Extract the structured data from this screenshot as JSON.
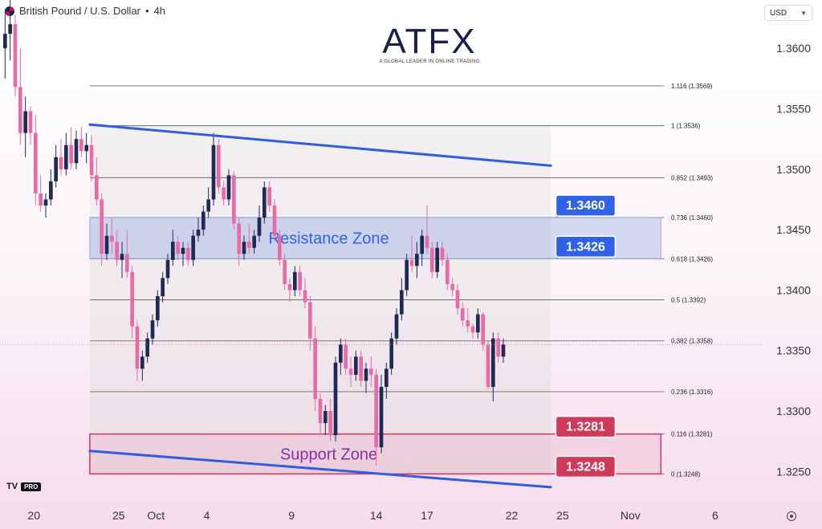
{
  "header": {
    "symbol": "British Pound / U.S. Dollar",
    "interval": "4h",
    "separator": "•"
  },
  "currency": {
    "label": "USD"
  },
  "logo": {
    "text": "ATFX",
    "tagline": "A GLOBAL LEADER IN ONLINE TRADING"
  },
  "branding": {
    "tv": "TV",
    "pro": "PRO"
  },
  "colors": {
    "up": "#1e2a55",
    "down": "#e86aa6",
    "trend": "#2f5fe0",
    "support": "#d03a5a",
    "resistance": "#2f62e6"
  },
  "chart_data": {
    "type": "candlestick",
    "ylim": [
      1.3225,
      1.364
    ],
    "xlim": [
      18.0,
      39.5
    ],
    "y_ticks": [
      "1.3250",
      "1.3300",
      "1.3350",
      "1.3400",
      "1.3450",
      "1.3500",
      "1.3550",
      "1.3600"
    ],
    "x_ticks": [
      {
        "label": "20",
        "x": 20
      },
      {
        "label": "25",
        "x": 25
      },
      {
        "label": "Oct",
        "x": 27.2
      },
      {
        "label": "4",
        "x": 30.2
      },
      {
        "label": "9",
        "x": 35.2
      },
      {
        "label": "14",
        "x": 40.2
      },
      {
        "label": "17",
        "x": 43.2
      },
      {
        "label": "22",
        "x": 48.2
      },
      {
        "label": "25",
        "x": 51.2
      },
      {
        "label": "Nov",
        "x": 55.2
      },
      {
        "label": "6",
        "x": 60.2
      }
    ],
    "xlim_full": [
      18.0,
      63.0
    ],
    "fib_levels": [
      {
        "ratio": "1.116",
        "label": "1.116 (1.3569)",
        "value": 1.3569
      },
      {
        "ratio": "1",
        "label": "1 (1.3536)",
        "value": 1.3536
      },
      {
        "ratio": "0.852",
        "label": "0.852 (1.3493)",
        "value": 1.3493
      },
      {
        "ratio": "0.736",
        "label": "0.736 (1.3460)",
        "value": 1.346
      },
      {
        "ratio": "0.618",
        "label": "0.618 (1.3426)",
        "value": 1.3426
      },
      {
        "ratio": "0.5",
        "label": "0.5 (1.3392)",
        "value": 1.3392
      },
      {
        "ratio": "0.382",
        "label": "0.382 (1.3358)",
        "value": 1.3358
      },
      {
        "ratio": "0.236",
        "label": "0.236 (1.3316)",
        "value": 1.3316
      },
      {
        "ratio": "0.116",
        "label": "0.116 (1.3281)",
        "value": 1.3281
      },
      {
        "ratio": "0",
        "label": "0 (1.3248)",
        "value": 1.3248
      }
    ],
    "zones": [
      {
        "name": "Resistance Zone",
        "low": 1.3426,
        "high": 1.346,
        "kind": "resistance"
      },
      {
        "name": "Support Zone",
        "low": 1.3248,
        "high": 1.3281,
        "kind": "support"
      }
    ],
    "price_labels": [
      {
        "text": "1.3460",
        "value": 1.346,
        "kind": "resistance"
      },
      {
        "text": "1.3426",
        "value": 1.3426,
        "kind": "resistance"
      },
      {
        "text": "1.3281",
        "value": 1.3281,
        "kind": "support"
      },
      {
        "text": "1.3248",
        "value": 1.3248,
        "kind": "support"
      }
    ],
    "trendlines": [
      {
        "x1": 23.3,
        "y1": 1.3537,
        "x2": 50.5,
        "y2": 1.3503
      },
      {
        "x1": 23.3,
        "y1": 1.3267,
        "x2": 50.5,
        "y2": 1.3237
      }
    ],
    "current_price": 1.3355,
    "candles": [
      [
        18.3,
        1.36,
        1.363,
        1.3575,
        1.3612
      ],
      [
        18.6,
        1.3612,
        1.364,
        1.359,
        1.362
      ],
      [
        18.9,
        1.362,
        1.3628,
        1.356,
        1.3568
      ],
      [
        19.2,
        1.3568,
        1.36,
        1.352,
        1.353
      ],
      [
        19.5,
        1.353,
        1.356,
        1.351,
        1.3548
      ],
      [
        19.8,
        1.3548,
        1.3552,
        1.352,
        1.353
      ],
      [
        20.1,
        1.353,
        1.3545,
        1.347,
        1.348
      ],
      [
        20.4,
        1.348,
        1.3495,
        1.3465,
        1.347
      ],
      [
        20.7,
        1.347,
        1.348,
        1.346,
        1.3475
      ],
      [
        21.0,
        1.3475,
        1.35,
        1.347,
        1.349
      ],
      [
        21.3,
        1.349,
        1.352,
        1.3485,
        1.351
      ],
      [
        21.6,
        1.351,
        1.3525,
        1.3495,
        1.35
      ],
      [
        21.9,
        1.35,
        1.353,
        1.3495,
        1.352
      ],
      [
        22.2,
        1.352,
        1.3535,
        1.35,
        1.3505
      ],
      [
        22.5,
        1.3505,
        1.3532,
        1.35,
        1.3525
      ],
      [
        22.8,
        1.3525,
        1.3535,
        1.351,
        1.3515
      ],
      [
        23.1,
        1.3515,
        1.353,
        1.3505,
        1.352
      ],
      [
        23.4,
        1.352,
        1.3528,
        1.349,
        1.3495
      ],
      [
        23.7,
        1.3495,
        1.351,
        1.347,
        1.3475
      ],
      [
        24.0,
        1.3475,
        1.348,
        1.342,
        1.343
      ],
      [
        24.3,
        1.343,
        1.3455,
        1.3425,
        1.3445
      ],
      [
        24.6,
        1.3445,
        1.346,
        1.343,
        1.344
      ],
      [
        24.9,
        1.344,
        1.345,
        1.342,
        1.3425
      ],
      [
        25.2,
        1.3425,
        1.344,
        1.341,
        1.343
      ],
      [
        25.5,
        1.343,
        1.345,
        1.341,
        1.3415
      ],
      [
        25.8,
        1.3415,
        1.342,
        1.336,
        1.337
      ],
      [
        26.1,
        1.337,
        1.3375,
        1.3325,
        1.3335
      ],
      [
        26.4,
        1.3335,
        1.335,
        1.3325,
        1.3345
      ],
      [
        26.7,
        1.3345,
        1.3365,
        1.334,
        1.336
      ],
      [
        27.0,
        1.336,
        1.338,
        1.3355,
        1.3375
      ],
      [
        27.3,
        1.3375,
        1.34,
        1.337,
        1.3395
      ],
      [
        27.6,
        1.3395,
        1.3415,
        1.339,
        1.341
      ],
      [
        27.9,
        1.341,
        1.343,
        1.3405,
        1.3425
      ],
      [
        28.2,
        1.3425,
        1.345,
        1.342,
        1.344
      ],
      [
        28.5,
        1.344,
        1.3445,
        1.3425,
        1.343
      ],
      [
        28.8,
        1.343,
        1.344,
        1.342,
        1.3435
      ],
      [
        29.1,
        1.3435,
        1.344,
        1.342,
        1.3425
      ],
      [
        29.4,
        1.3425,
        1.345,
        1.342,
        1.3445
      ],
      [
        29.7,
        1.3445,
        1.346,
        1.344,
        1.345
      ],
      [
        30.0,
        1.345,
        1.347,
        1.3445,
        1.3465
      ],
      [
        30.3,
        1.3465,
        1.3485,
        1.346,
        1.3475
      ],
      [
        30.6,
        1.3475,
        1.353,
        1.347,
        1.352
      ],
      [
        30.9,
        1.352,
        1.3525,
        1.348,
        1.3485
      ],
      [
        31.2,
        1.3485,
        1.349,
        1.347,
        1.3475
      ],
      [
        31.5,
        1.3475,
        1.35,
        1.347,
        1.3495
      ],
      [
        31.8,
        1.3495,
        1.3498,
        1.345,
        1.3455
      ],
      [
        32.1,
        1.3455,
        1.346,
        1.342,
        1.343
      ],
      [
        32.4,
        1.343,
        1.3445,
        1.3425,
        1.344
      ],
      [
        32.7,
        1.344,
        1.3455,
        1.343,
        1.3435
      ],
      [
        33.0,
        1.3435,
        1.345,
        1.343,
        1.3445
      ],
      [
        33.3,
        1.3445,
        1.347,
        1.344,
        1.346
      ],
      [
        33.6,
        1.346,
        1.349,
        1.3455,
        1.3485
      ],
      [
        33.9,
        1.3485,
        1.349,
        1.3465,
        1.347
      ],
      [
        34.2,
        1.347,
        1.3475,
        1.344,
        1.3445
      ],
      [
        34.5,
        1.3445,
        1.345,
        1.342,
        1.3425
      ],
      [
        34.8,
        1.3425,
        1.343,
        1.34,
        1.3405
      ],
      [
        35.1,
        1.3405,
        1.341,
        1.339,
        1.34
      ],
      [
        35.4,
        1.34,
        1.342,
        1.3395,
        1.3415
      ],
      [
        35.7,
        1.3415,
        1.342,
        1.3395,
        1.34
      ],
      [
        36.0,
        1.34,
        1.341,
        1.3385,
        1.339
      ],
      [
        36.3,
        1.339,
        1.3395,
        1.335,
        1.336
      ],
      [
        36.6,
        1.336,
        1.337,
        1.33,
        1.331
      ],
      [
        36.9,
        1.331,
        1.3315,
        1.328,
        1.329
      ],
      [
        37.2,
        1.329,
        1.3305,
        1.328,
        1.33
      ],
      [
        37.5,
        1.33,
        1.331,
        1.3275,
        1.328
      ],
      [
        37.8,
        1.328,
        1.3345,
        1.3275,
        1.334
      ],
      [
        38.1,
        1.334,
        1.336,
        1.333,
        1.3355
      ],
      [
        38.4,
        1.3355,
        1.336,
        1.333,
        1.3335
      ],
      [
        38.7,
        1.3335,
        1.3345,
        1.332,
        1.333
      ],
      [
        39.0,
        1.333,
        1.335,
        1.3325,
        1.3345
      ]
    ],
    "candles_b": [
      [
        39.3,
        1.3345,
        1.335,
        1.332,
        1.3325
      ],
      [
        39.6,
        1.3325,
        1.334,
        1.3315,
        1.3335
      ],
      [
        39.9,
        1.3335,
        1.3345,
        1.332,
        1.333
      ],
      [
        40.2,
        1.333,
        1.3335,
        1.3255,
        1.327
      ],
      [
        40.5,
        1.327,
        1.333,
        1.3265,
        1.332
      ],
      [
        40.8,
        1.332,
        1.334,
        1.331,
        1.3335
      ],
      [
        41.1,
        1.3335,
        1.3365,
        1.333,
        1.336
      ],
      [
        41.4,
        1.336,
        1.3385,
        1.3355,
        1.338
      ],
      [
        41.7,
        1.338,
        1.341,
        1.3375,
        1.34
      ],
      [
        42.0,
        1.34,
        1.343,
        1.3395,
        1.3425
      ],
      [
        42.3,
        1.3425,
        1.3445,
        1.3415,
        1.342
      ],
      [
        42.6,
        1.342,
        1.344,
        1.341,
        1.343
      ],
      [
        42.9,
        1.343,
        1.345,
        1.342,
        1.3445
      ],
      [
        43.2,
        1.3445,
        1.347,
        1.343,
        1.3435
      ],
      [
        43.5,
        1.3435,
        1.344,
        1.341,
        1.3415
      ],
      [
        43.8,
        1.3415,
        1.344,
        1.341,
        1.3435
      ],
      [
        44.1,
        1.3435,
        1.344,
        1.342,
        1.3425
      ],
      [
        44.4,
        1.3425,
        1.343,
        1.34,
        1.3405
      ],
      [
        44.7,
        1.3405,
        1.341,
        1.3395,
        1.34
      ],
      [
        45.0,
        1.34,
        1.3405,
        1.338,
        1.3385
      ],
      [
        45.3,
        1.3385,
        1.339,
        1.337,
        1.3375
      ],
      [
        45.6,
        1.3375,
        1.3385,
        1.3365,
        1.337
      ],
      [
        45.9,
        1.337,
        1.3372,
        1.336,
        1.3365
      ],
      [
        46.2,
        1.3365,
        1.3385,
        1.336,
        1.338
      ],
      [
        46.5,
        1.338,
        1.3382,
        1.335,
        1.3355
      ],
      [
        46.8,
        1.3355,
        1.3358,
        1.3318,
        1.332
      ],
      [
        47.1,
        1.332,
        1.3365,
        1.3308,
        1.336
      ],
      [
        47.4,
        1.336,
        1.3365,
        1.334,
        1.3345
      ],
      [
        47.7,
        1.3345,
        1.336,
        1.334,
        1.3355
      ]
    ]
  }
}
